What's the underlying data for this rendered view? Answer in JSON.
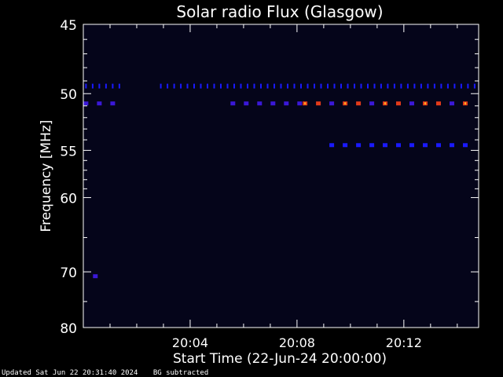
{
  "chart_data": {
    "type": "heatmap",
    "title": "Solar radio Flux (Glasgow)",
    "xlabel": "Start Time (22-Jun-24 20:00:00)",
    "ylabel": "Frequency [MHz]",
    "x_unit": "minutes after 20:00:00",
    "xlim": [
      0,
      14.8
    ],
    "ylim": [
      45,
      80
    ],
    "y_scale": "reciprocal",
    "x_ticks": [
      {
        "x": 4,
        "label": "20:04"
      },
      {
        "x": 8,
        "label": "20:08"
      },
      {
        "x": 12,
        "label": "20:12"
      }
    ],
    "y_ticks": [
      {
        "y": 45,
        "label": "45"
      },
      {
        "y": 50,
        "label": "50"
      },
      {
        "y": 55,
        "label": "55"
      },
      {
        "y": 60,
        "label": "60"
      },
      {
        "y": 70,
        "label": "70"
      },
      {
        "y": 80,
        "label": "80"
      }
    ],
    "features": [
      {
        "freq": 49.4,
        "t_start": 0.1,
        "t_end": 1.5,
        "period": 0.25,
        "intensity": 0.45
      },
      {
        "freq": 49.4,
        "t_start": 2.9,
        "t_end": 14.7,
        "period": 0.25,
        "intensity": 0.45
      },
      {
        "freq": 50.8,
        "t_start": 0.1,
        "t_end": 1.2,
        "period": 0.5,
        "intensity": 0.5
      },
      {
        "freq": 50.8,
        "t_start": 5.6,
        "t_end": 8.2,
        "period": 0.5,
        "intensity": 0.5
      },
      {
        "freq": 50.8,
        "t_start": 8.3,
        "t_end": 14.7,
        "period": 0.5,
        "intensity": 0.9
      },
      {
        "freq": 54.5,
        "t_start": 9.3,
        "t_end": 14.7,
        "period": 0.5,
        "intensity": 0.4
      },
      {
        "freq": 70.7,
        "t_start": 0.45,
        "t_end": 0.55,
        "period": 1,
        "intensity": 0.55
      }
    ],
    "colors": {
      "background": "#000000",
      "plot_bg": "#05051a"
    }
  },
  "footer": {
    "updated": "Updated Sat Jun 22 20:31:40 2024",
    "note": "BG subtracted"
  }
}
